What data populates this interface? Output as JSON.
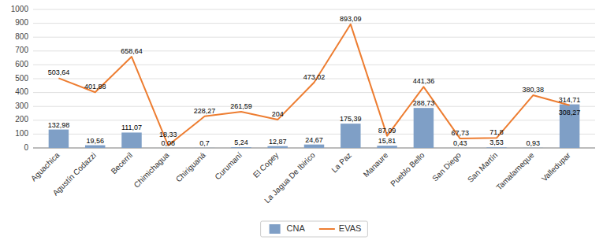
{
  "chart_data": {
    "type": "bar",
    "categories": [
      "Aguachica",
      "Agustín Codazzi",
      "Becerril",
      "Chimichagua",
      "Chiriguaná",
      "Curumaní",
      "El Copey",
      "La Jagua De Ibirico",
      "La Paz",
      "Manaure",
      "Pueblo Bello",
      "San Diego",
      "San Martín",
      "Tamalameque",
      "Valledupar"
    ],
    "series": [
      {
        "name": "CNA",
        "type": "bar",
        "color": "#7f9fc6",
        "values": [
          132.98,
          19.56,
          111.07,
          0.08,
          0.7,
          5.24,
          12.87,
          24.67,
          175.39,
          15.81,
          288.73,
          0.43,
          3.53,
          0.93,
          314.71
        ],
        "value_labels": [
          "132,98",
          "19,56",
          "111,07",
          "0,08",
          "0,7",
          "5,24",
          "12,87",
          "24,67",
          "175,39",
          "15,81",
          "288,73",
          "0,43",
          "3,53",
          "0,93",
          "314,71"
        ]
      },
      {
        "name": "EVAS",
        "type": "line",
        "color": "#ed7d31",
        "values": [
          503.64,
          401.88,
          658.64,
          18.33,
          228.27,
          261.59,
          204,
          473.02,
          893.09,
          87.09,
          441.36,
          67.73,
          71.8,
          380.38,
          308.27
        ],
        "value_labels": [
          "503,64",
          "401,88",
          "658,64",
          "18,33",
          "228,27",
          "261,59",
          "204",
          "473,02",
          "893,09",
          "87,09",
          "441,36",
          "67,73",
          "71,8",
          "380,38",
          "308,27"
        ]
      }
    ],
    "ylim": [
      0,
      1000
    ],
    "yticks": [
      0,
      100,
      200,
      300,
      400,
      500,
      600,
      700,
      800,
      900,
      1000
    ],
    "grid": true,
    "legend": "bottom",
    "data_labels": true
  }
}
